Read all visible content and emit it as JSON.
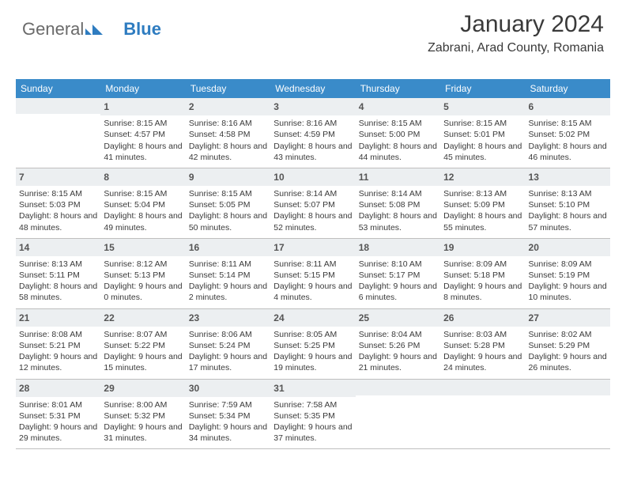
{
  "logo": {
    "text1": "General",
    "text2": "Blue"
  },
  "header": {
    "title": "January 2024",
    "location": "Zabrani, Arad County, Romania"
  },
  "colors": {
    "header_bg": "#3a8bc9",
    "header_text": "#ffffff",
    "daynum_bg": "#eceff1",
    "border": "#bfbfbf",
    "text": "#3a3a3a",
    "logo_gray": "#6a6a6a",
    "logo_blue": "#2e7cc0"
  },
  "day_names": [
    "Sunday",
    "Monday",
    "Tuesday",
    "Wednesday",
    "Thursday",
    "Friday",
    "Saturday"
  ],
  "weeks": [
    [
      null,
      {
        "n": "1",
        "sr": "Sunrise: 8:15 AM",
        "ss": "Sunset: 4:57 PM",
        "dl": "Daylight: 8 hours and 41 minutes."
      },
      {
        "n": "2",
        "sr": "Sunrise: 8:16 AM",
        "ss": "Sunset: 4:58 PM",
        "dl": "Daylight: 8 hours and 42 minutes."
      },
      {
        "n": "3",
        "sr": "Sunrise: 8:16 AM",
        "ss": "Sunset: 4:59 PM",
        "dl": "Daylight: 8 hours and 43 minutes."
      },
      {
        "n": "4",
        "sr": "Sunrise: 8:15 AM",
        "ss": "Sunset: 5:00 PM",
        "dl": "Daylight: 8 hours and 44 minutes."
      },
      {
        "n": "5",
        "sr": "Sunrise: 8:15 AM",
        "ss": "Sunset: 5:01 PM",
        "dl": "Daylight: 8 hours and 45 minutes."
      },
      {
        "n": "6",
        "sr": "Sunrise: 8:15 AM",
        "ss": "Sunset: 5:02 PM",
        "dl": "Daylight: 8 hours and 46 minutes."
      }
    ],
    [
      {
        "n": "7",
        "sr": "Sunrise: 8:15 AM",
        "ss": "Sunset: 5:03 PM",
        "dl": "Daylight: 8 hours and 48 minutes."
      },
      {
        "n": "8",
        "sr": "Sunrise: 8:15 AM",
        "ss": "Sunset: 5:04 PM",
        "dl": "Daylight: 8 hours and 49 minutes."
      },
      {
        "n": "9",
        "sr": "Sunrise: 8:15 AM",
        "ss": "Sunset: 5:05 PM",
        "dl": "Daylight: 8 hours and 50 minutes."
      },
      {
        "n": "10",
        "sr": "Sunrise: 8:14 AM",
        "ss": "Sunset: 5:07 PM",
        "dl": "Daylight: 8 hours and 52 minutes."
      },
      {
        "n": "11",
        "sr": "Sunrise: 8:14 AM",
        "ss": "Sunset: 5:08 PM",
        "dl": "Daylight: 8 hours and 53 minutes."
      },
      {
        "n": "12",
        "sr": "Sunrise: 8:13 AM",
        "ss": "Sunset: 5:09 PM",
        "dl": "Daylight: 8 hours and 55 minutes."
      },
      {
        "n": "13",
        "sr": "Sunrise: 8:13 AM",
        "ss": "Sunset: 5:10 PM",
        "dl": "Daylight: 8 hours and 57 minutes."
      }
    ],
    [
      {
        "n": "14",
        "sr": "Sunrise: 8:13 AM",
        "ss": "Sunset: 5:11 PM",
        "dl": "Daylight: 8 hours and 58 minutes."
      },
      {
        "n": "15",
        "sr": "Sunrise: 8:12 AM",
        "ss": "Sunset: 5:13 PM",
        "dl": "Daylight: 9 hours and 0 minutes."
      },
      {
        "n": "16",
        "sr": "Sunrise: 8:11 AM",
        "ss": "Sunset: 5:14 PM",
        "dl": "Daylight: 9 hours and 2 minutes."
      },
      {
        "n": "17",
        "sr": "Sunrise: 8:11 AM",
        "ss": "Sunset: 5:15 PM",
        "dl": "Daylight: 9 hours and 4 minutes."
      },
      {
        "n": "18",
        "sr": "Sunrise: 8:10 AM",
        "ss": "Sunset: 5:17 PM",
        "dl": "Daylight: 9 hours and 6 minutes."
      },
      {
        "n": "19",
        "sr": "Sunrise: 8:09 AM",
        "ss": "Sunset: 5:18 PM",
        "dl": "Daylight: 9 hours and 8 minutes."
      },
      {
        "n": "20",
        "sr": "Sunrise: 8:09 AM",
        "ss": "Sunset: 5:19 PM",
        "dl": "Daylight: 9 hours and 10 minutes."
      }
    ],
    [
      {
        "n": "21",
        "sr": "Sunrise: 8:08 AM",
        "ss": "Sunset: 5:21 PM",
        "dl": "Daylight: 9 hours and 12 minutes."
      },
      {
        "n": "22",
        "sr": "Sunrise: 8:07 AM",
        "ss": "Sunset: 5:22 PM",
        "dl": "Daylight: 9 hours and 15 minutes."
      },
      {
        "n": "23",
        "sr": "Sunrise: 8:06 AM",
        "ss": "Sunset: 5:24 PM",
        "dl": "Daylight: 9 hours and 17 minutes."
      },
      {
        "n": "24",
        "sr": "Sunrise: 8:05 AM",
        "ss": "Sunset: 5:25 PM",
        "dl": "Daylight: 9 hours and 19 minutes."
      },
      {
        "n": "25",
        "sr": "Sunrise: 8:04 AM",
        "ss": "Sunset: 5:26 PM",
        "dl": "Daylight: 9 hours and 21 minutes."
      },
      {
        "n": "26",
        "sr": "Sunrise: 8:03 AM",
        "ss": "Sunset: 5:28 PM",
        "dl": "Daylight: 9 hours and 24 minutes."
      },
      {
        "n": "27",
        "sr": "Sunrise: 8:02 AM",
        "ss": "Sunset: 5:29 PM",
        "dl": "Daylight: 9 hours and 26 minutes."
      }
    ],
    [
      {
        "n": "28",
        "sr": "Sunrise: 8:01 AM",
        "ss": "Sunset: 5:31 PM",
        "dl": "Daylight: 9 hours and 29 minutes."
      },
      {
        "n": "29",
        "sr": "Sunrise: 8:00 AM",
        "ss": "Sunset: 5:32 PM",
        "dl": "Daylight: 9 hours and 31 minutes."
      },
      {
        "n": "30",
        "sr": "Sunrise: 7:59 AM",
        "ss": "Sunset: 5:34 PM",
        "dl": "Daylight: 9 hours and 34 minutes."
      },
      {
        "n": "31",
        "sr": "Sunrise: 7:58 AM",
        "ss": "Sunset: 5:35 PM",
        "dl": "Daylight: 9 hours and 37 minutes."
      },
      null,
      null,
      null
    ]
  ]
}
